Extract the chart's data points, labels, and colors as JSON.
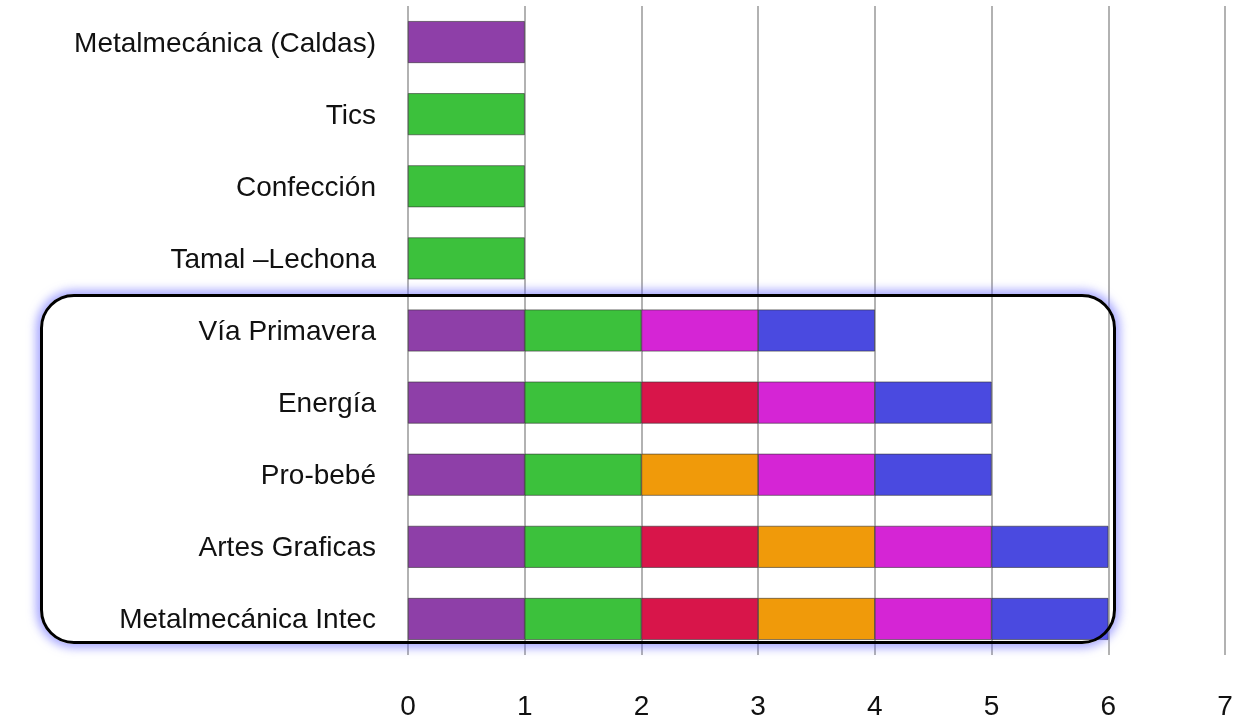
{
  "chart_data": {
    "type": "bar",
    "orientation": "horizontal",
    "stacked": true,
    "categories": [
      "Metalmecánica (Caldas)",
      "Tics",
      "Confección",
      "Tamal –Lechona",
      "Vía Primavera",
      "Energía",
      "Pro-bebé",
      "Artes Graficas",
      "Metalmecánica Intec"
    ],
    "series": [
      {
        "color": "#8e3fa8",
        "values": [
          1,
          null,
          null,
          null,
          1,
          1,
          1,
          1,
          1
        ]
      },
      {
        "color": "#3cc13c",
        "values": [
          null,
          1,
          1,
          1,
          1,
          1,
          1,
          1,
          1
        ]
      },
      {
        "color": "#d8154a",
        "values": [
          null,
          null,
          null,
          null,
          null,
          1,
          null,
          1,
          1
        ]
      },
      {
        "color": "#f09a0a",
        "values": [
          null,
          null,
          null,
          null,
          null,
          null,
          1,
          1,
          1
        ]
      },
      {
        "color": "#d525d5",
        "values": [
          null,
          null,
          null,
          null,
          1,
          1,
          1,
          1,
          1
        ]
      },
      {
        "color": "#4a4ae0",
        "values": [
          null,
          null,
          null,
          null,
          1,
          1,
          1,
          1,
          1
        ]
      }
    ],
    "xlim": [
      0,
      7
    ],
    "xticks": [
      0,
      1,
      2,
      3,
      4,
      5,
      6,
      7
    ],
    "grid": "x"
  }
}
